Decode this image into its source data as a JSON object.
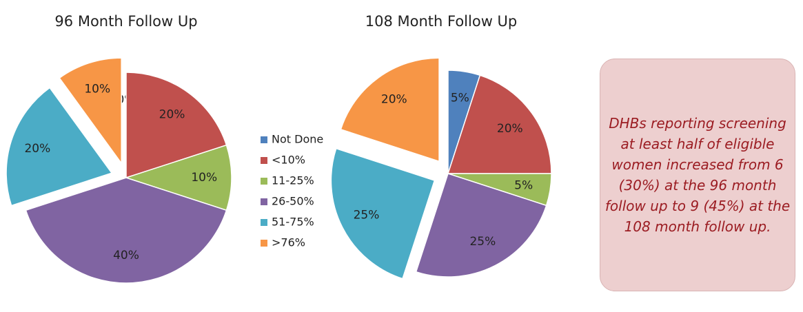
{
  "chart_data": [
    {
      "type": "pie",
      "title": "96 Month Follow Up",
      "categories": [
        "Not Done",
        "<10%",
        "11-25%",
        "26-50%",
        "51-75%",
        ">76%"
      ],
      "values": [
        0,
        20,
        10,
        40,
        20,
        10
      ],
      "value_labels": [
        "0%",
        "20%",
        "10%",
        "40%",
        "20%",
        "10%"
      ],
      "colors": [
        "#4f81bd",
        "#c0504d",
        "#9bbb59",
        "#8064a2",
        "#4bacc6",
        "#f79646"
      ],
      "explode": [
        4,
        5
      ]
    },
    {
      "type": "pie",
      "title": "108 Month Follow Up",
      "categories": [
        "Not Done",
        "<10%",
        "11-25%",
        "26-50%",
        "51-75%",
        ">76%"
      ],
      "values": [
        5,
        20,
        5,
        25,
        25,
        20
      ],
      "value_labels": [
        "5%",
        "20%",
        "5%",
        "25%",
        "25%",
        "20%"
      ],
      "colors": [
        "#4f81bd",
        "#c0504d",
        "#9bbb59",
        "#8064a2",
        "#4bacc6",
        "#f79646"
      ],
      "explode": [
        4,
        5
      ]
    }
  ],
  "callout": "DHBs reporting screening at least half of eligible women increased from 6 (30%) at the 96 month follow up to 9 (45%) at the 108 month follow up."
}
